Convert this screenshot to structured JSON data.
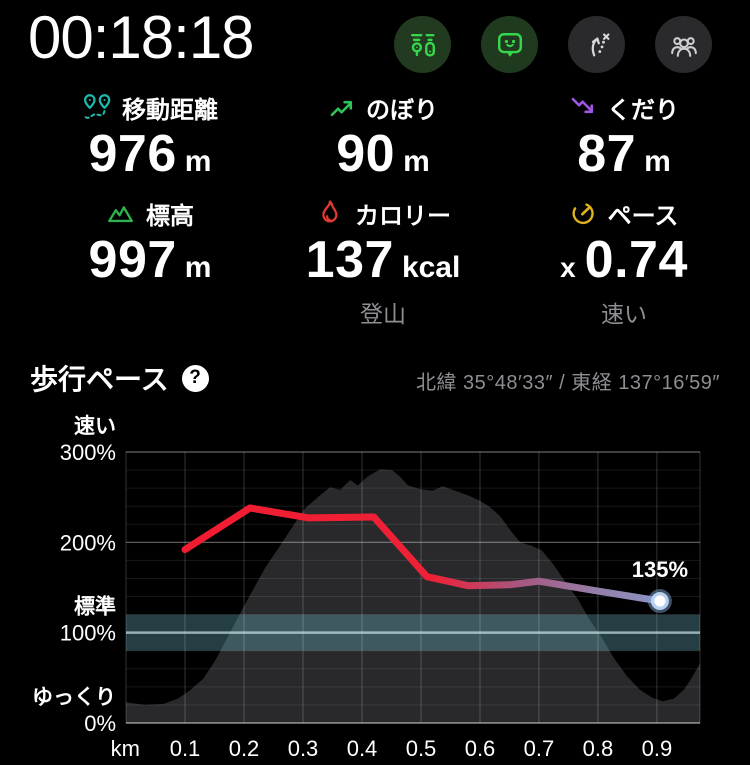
{
  "header": {
    "timer": "00:18:18",
    "buttons": [
      {
        "icon": "route-record-icon",
        "bg": "#223A1F",
        "fg": "#35D64C"
      },
      {
        "icon": "mascot-chat-icon",
        "bg": "#1F3A1E",
        "fg": "#35D64C"
      },
      {
        "icon": "route-branch-icon",
        "bg": "#2A2A2C",
        "fg": "#D6D6DB"
      },
      {
        "icon": "group-icon",
        "bg": "#2A2A2C",
        "fg": "#CFCFD4"
      }
    ]
  },
  "stats": [
    {
      "icon": "distance-route-icon",
      "icon_color": "#1CB9AC",
      "label": "移動距離",
      "value": "976",
      "unit": "m"
    },
    {
      "icon": "ascent-icon",
      "icon_color": "#2FC25B",
      "label": "のぼり",
      "value": "90",
      "unit": "m"
    },
    {
      "icon": "descent-icon",
      "icon_color": "#A056E3",
      "label": "くだり",
      "value": "87",
      "unit": "m"
    },
    {
      "icon": "elevation-icon",
      "icon_color": "#2EB350",
      "label": "標高",
      "value": "997",
      "unit": "m"
    },
    {
      "icon": "calorie-icon",
      "icon_color": "#E23C32",
      "label": "カロリー",
      "value": "137",
      "unit": "kcal",
      "sub": "登山"
    },
    {
      "icon": "pace-icon",
      "icon_color": "#DFB31C",
      "label": "ペース",
      "prefix": "x",
      "value": "0.74",
      "unit": "",
      "sub": "速い"
    }
  ],
  "pace_section": {
    "title": "歩行ペース",
    "help_text": "?",
    "coordinates": "北緯 35°48′33″ / 東経 137°16′59″"
  },
  "chart_data": {
    "type": "line",
    "title": "歩行ペース",
    "xlabel": "km",
    "x_ticks": [
      0.1,
      0.2,
      0.3,
      0.4,
      0.5,
      0.6,
      0.7,
      0.8,
      0.9
    ],
    "xlim": [
      0,
      0.973
    ],
    "ylim": [
      0,
      300
    ],
    "y_ticks": [
      {
        "value": 300,
        "label": "300%",
        "caption": "速い"
      },
      {
        "value": 200,
        "label": "200%"
      },
      {
        "value": 100,
        "label": "100%",
        "caption": "標準"
      },
      {
        "value": 0,
        "label": "0%",
        "caption": "ゆっくり"
      }
    ],
    "normal_band": {
      "from": 80,
      "to": 120,
      "center": 100
    },
    "series": {
      "name": "歩行ペース",
      "x": [
        0.1,
        0.21,
        0.31,
        0.42,
        0.51,
        0.58,
        0.65,
        0.7,
        0.8,
        0.905
      ],
      "y": [
        192,
        238,
        227,
        228,
        162,
        152,
        153,
        157,
        146,
        135
      ]
    },
    "end_point": {
      "x": 0.905,
      "y": 135
    },
    "end_label": "135%",
    "line_gradient": [
      {
        "offset": 0,
        "color": "#F21C31"
      },
      {
        "offset": 0.52,
        "color": "#EE2136"
      },
      {
        "offset": 0.7,
        "color": "#A9567F"
      },
      {
        "offset": 0.88,
        "color": "#9282AC"
      },
      {
        "offset": 1,
        "color": "#8B93C4"
      }
    ],
    "elevation_profile": {
      "x": [
        0,
        0.032,
        0.063,
        0.088,
        0.108,
        0.131,
        0.151,
        0.173,
        0.193,
        0.214,
        0.237,
        0.261,
        0.283,
        0.303,
        0.325,
        0.346,
        0.363,
        0.38,
        0.393,
        0.41,
        0.431,
        0.451,
        0.464,
        0.478,
        0.498,
        0.519,
        0.537,
        0.558,
        0.58,
        0.6,
        0.617,
        0.634,
        0.651,
        0.668,
        0.688,
        0.705,
        0.724,
        0.744,
        0.766,
        0.786,
        0.807,
        0.827,
        0.849,
        0.871,
        0.892,
        0.91,
        0.929,
        0.946,
        0.959,
        0.973
      ],
      "y": [
        23,
        20,
        21,
        27,
        36,
        49,
        69,
        96,
        121,
        146,
        173,
        196,
        218,
        237,
        250,
        261,
        258,
        269,
        263,
        273,
        281,
        280,
        273,
        263,
        259,
        257,
        262,
        257,
        252,
        246,
        239,
        229,
        214,
        200,
        196,
        191,
        176,
        157,
        137,
        114,
        94,
        72,
        52,
        37,
        28,
        24,
        27,
        37,
        50,
        66
      ]
    }
  },
  "colors": {
    "band": "rgba(106,183,197,0.34)",
    "band_center": "rgba(214,238,243,0.65)",
    "silhouette": "#29292C",
    "grid_minor": "rgba(255,255,255,0.09)",
    "grid_major": "rgba(255,255,255,0.40)",
    "grid_vertical": "rgba(255,255,255,0.20)",
    "axis_bottom": "rgba(255,255,255,0.55)",
    "dot_core": "#FFFFFF",
    "dot_ring": "rgba(190,215,245,0.95)",
    "dot_glow": "rgba(125,160,210,0.5)"
  }
}
